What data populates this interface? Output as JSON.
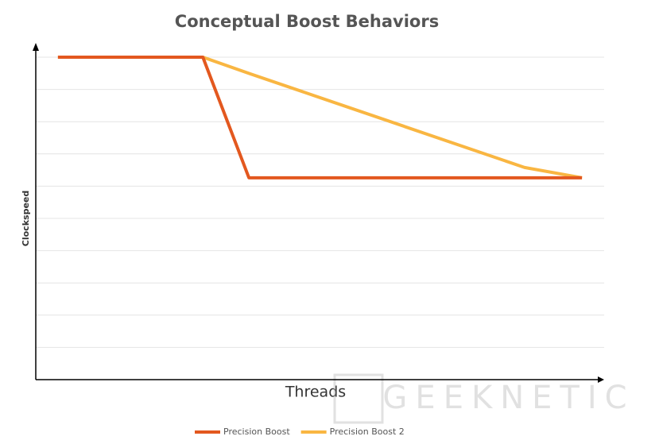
{
  "chart_data": {
    "type": "line",
    "title": "Conceptual Boost Behaviors",
    "x_label": "Threads",
    "y_label": "Clockspeed",
    "series": [
      {
        "name": "Precision Boost",
        "color": "#e3581f",
        "x": [
          3.9,
          29.4,
          37.5,
          96.1
        ],
        "values": [
          10,
          10,
          6.26,
          6.26
        ]
      },
      {
        "name": "Precision Boost 2",
        "color": "#f9b642",
        "x": [
          3.9,
          29.4,
          37.8,
          86,
          96.1
        ],
        "values": [
          10,
          10,
          9.48,
          6.58,
          6.26
        ]
      }
    ],
    "xlim": [
      0,
      100
    ],
    "ylim": [
      0,
      10
    ],
    "yticks": [
      1,
      2,
      3,
      4,
      5,
      6,
      7,
      8,
      9,
      10
    ],
    "grid": true,
    "show_tick_labels": false,
    "legend": "bottom",
    "watermark": "GEEKNETIC"
  }
}
